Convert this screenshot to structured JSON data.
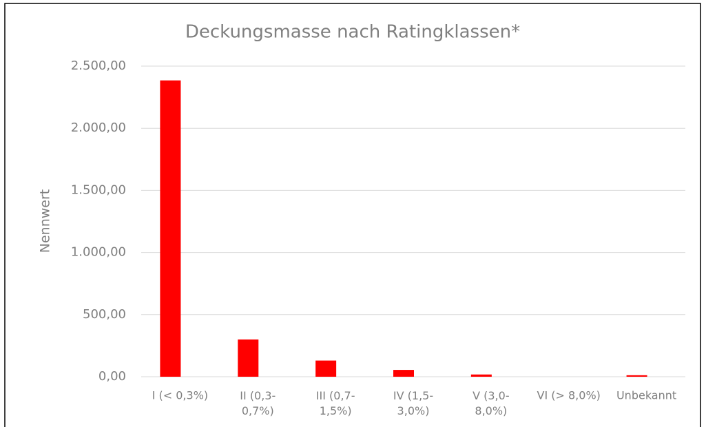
{
  "chart_data": {
    "type": "bar",
    "title": "Deckungsmasse nach Ratingklassen*",
    "y_label": "Nennwert",
    "categories": [
      "I (< 0,3%)",
      "II (0,3-0,7%)",
      "III (0,7-1,5%)",
      "IV (1,5-3,0%)",
      "V (3,0-8,0%)",
      "VI (> 8,0%)",
      "Unbekannt"
    ],
    "values": [
      2385,
      300,
      130,
      55,
      18,
      0,
      12
    ],
    "color": "#ff0000",
    "ylim": [
      0,
      2500
    ],
    "yticks": [
      {
        "value": 0,
        "label": "0,00"
      },
      {
        "value": 500,
        "label": "500,00"
      },
      {
        "value": 1000,
        "label": "1.000,00"
      },
      {
        "value": 1500,
        "label": "1.500,00"
      },
      {
        "value": 2000,
        "label": "2.000,00"
      },
      {
        "value": 2500,
        "label": "2.500,00"
      }
    ],
    "grid": true
  }
}
